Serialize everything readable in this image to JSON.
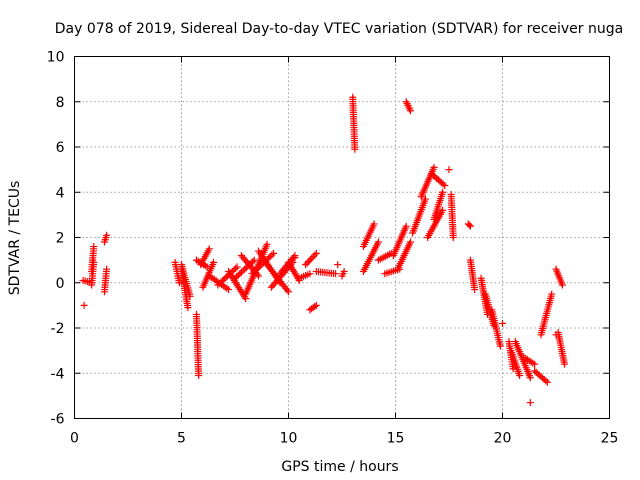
{
  "chart_data": {
    "type": "scatter",
    "title": "Day 078 of 2019, Sidereal Day-to-day VTEC variation (SDTVAR) for receiver nuga",
    "xlabel": "GPS time / hours",
    "ylabel": "SDTVAR / TECUs",
    "xlim": [
      0,
      25
    ],
    "ylim": [
      -6,
      10
    ],
    "x_ticks": [
      0,
      5,
      10,
      15,
      20,
      25
    ],
    "y_ticks": [
      -6,
      -4,
      -2,
      0,
      2,
      4,
      6,
      8,
      10
    ],
    "x_tick_labels": [
      "0",
      "5",
      "10",
      "15",
      "20",
      "25"
    ],
    "y_tick_labels": [
      "-6",
      "-4",
      "-2",
      "0",
      "2",
      "4",
      "6",
      "8",
      "10"
    ],
    "grid": true,
    "marker": "+",
    "color": "#ff0000",
    "segments": [
      {
        "x": [
          0.4,
          0.8
        ],
        "y": [
          0.1,
          0.0
        ]
      },
      {
        "x": [
          0.8,
          0.9
        ],
        "y": [
          0.5,
          1.6
        ]
      },
      {
        "x": [
          0.8,
          0.9
        ],
        "y": [
          -0.1,
          0.9
        ]
      },
      {
        "x": [
          1.4,
          1.5
        ],
        "y": [
          1.8,
          2.1
        ]
      },
      {
        "x": [
          1.4,
          1.5
        ],
        "y": [
          -0.4,
          0.6
        ]
      },
      {
        "x": [
          4.7,
          4.9
        ],
        "y": [
          0.9,
          0.0
        ]
      },
      {
        "x": [
          5.0,
          5.3
        ],
        "y": [
          0.6,
          -1.1
        ]
      },
      {
        "x": [
          5.0,
          5.4
        ],
        "y": [
          0.8,
          -0.6
        ]
      },
      {
        "x": [
          5.7,
          5.8
        ],
        "y": [
          -1.4,
          -4.1
        ]
      },
      {
        "x": [
          5.7,
          6.2
        ],
        "y": [
          1.0,
          0.7
        ]
      },
      {
        "x": [
          5.9,
          6.3
        ],
        "y": [
          0.8,
          1.5
        ]
      },
      {
        "x": [
          6.0,
          6.5
        ],
        "y": [
          -0.2,
          0.9
        ]
      },
      {
        "x": [
          6.3,
          7.2
        ],
        "y": [
          0.3,
          -0.3
        ]
      },
      {
        "x": [
          6.7,
          7.6
        ],
        "y": [
          -0.1,
          0.7
        ]
      },
      {
        "x": [
          7.2,
          8.0
        ],
        "y": [
          0.5,
          -0.7
        ]
      },
      {
        "x": [
          7.5,
          8.4
        ],
        "y": [
          0.2,
          1.0
        ]
      },
      {
        "x": [
          7.8,
          8.6
        ],
        "y": [
          1.2,
          0.3
        ]
      },
      {
        "x": [
          8.0,
          9.0
        ],
        "y": [
          -0.5,
          1.7
        ]
      },
      {
        "x": [
          8.3,
          9.3
        ],
        "y": [
          0.4,
          1.3
        ]
      },
      {
        "x": [
          8.6,
          9.6
        ],
        "y": [
          1.4,
          0.0
        ]
      },
      {
        "x": [
          9.0,
          10.0
        ],
        "y": [
          0.8,
          -0.4
        ]
      },
      {
        "x": [
          9.2,
          10.2
        ],
        "y": [
          -0.2,
          0.9
        ]
      },
      {
        "x": [
          9.6,
          10.3
        ],
        "y": [
          0.4,
          1.2
        ]
      },
      {
        "x": [
          10.0,
          10.5
        ],
        "y": [
          0.9,
          0.1
        ]
      },
      {
        "x": [
          10.5,
          11.0
        ],
        "y": [
          0.2,
          0.4
        ]
      },
      {
        "x": [
          10.8,
          11.3
        ],
        "y": [
          0.8,
          1.3
        ]
      },
      {
        "x": [
          11.0,
          11.3
        ],
        "y": [
          -1.2,
          -1.0
        ]
      },
      {
        "x": [
          11.3,
          12.2
        ],
        "y": [
          0.5,
          0.4
        ]
      },
      {
        "x": [
          12.5,
          12.6
        ],
        "y": [
          0.3,
          0.5
        ]
      },
      {
        "x": [
          13.0,
          13.1
        ],
        "y": [
          8.2,
          5.9
        ]
      },
      {
        "x": [
          13.5,
          14.0
        ],
        "y": [
          1.6,
          2.6
        ]
      },
      {
        "x": [
          13.5,
          14.2
        ],
        "y": [
          0.5,
          1.8
        ]
      },
      {
        "x": [
          14.2,
          14.8
        ],
        "y": [
          1.0,
          1.3
        ]
      },
      {
        "x": [
          14.5,
          15.2
        ],
        "y": [
          0.4,
          0.6
        ]
      },
      {
        "x": [
          14.9,
          15.5
        ],
        "y": [
          1.2,
          2.5
        ]
      },
      {
        "x": [
          15.1,
          15.7
        ],
        "y": [
          0.6,
          1.8
        ]
      },
      {
        "x": [
          15.5,
          15.7
        ],
        "y": [
          8.0,
          7.6
        ]
      },
      {
        "x": [
          15.8,
          16.4
        ],
        "y": [
          2.2,
          3.7
        ]
      },
      {
        "x": [
          16.2,
          16.8
        ],
        "y": [
          3.8,
          5.1
        ]
      },
      {
        "x": [
          16.5,
          17.2
        ],
        "y": [
          2.0,
          3.2
        ]
      },
      {
        "x": [
          16.7,
          17.3
        ],
        "y": [
          4.8,
          4.3
        ]
      },
      {
        "x": [
          16.8,
          17.2
        ],
        "y": [
          2.8,
          4.0
        ]
      },
      {
        "x": [
          17.6,
          17.7
        ],
        "y": [
          3.9,
          2.0
        ]
      },
      {
        "x": [
          18.4,
          18.5
        ],
        "y": [
          2.6,
          2.5
        ]
      },
      {
        "x": [
          18.5,
          18.7
        ],
        "y": [
          1.0,
          -0.3
        ]
      },
      {
        "x": [
          19.0,
          19.3
        ],
        "y": [
          0.2,
          -1.4
        ]
      },
      {
        "x": [
          19.2,
          19.6
        ],
        "y": [
          -0.5,
          -1.9
        ]
      },
      {
        "x": [
          19.5,
          19.9
        ],
        "y": [
          -1.2,
          -2.8
        ]
      },
      {
        "x": [
          20.3,
          20.5
        ],
        "y": [
          -2.6,
          -3.8
        ]
      },
      {
        "x": [
          20.4,
          20.8
        ],
        "y": [
          -3.0,
          -4.1
        ]
      },
      {
        "x": [
          20.6,
          21.3
        ],
        "y": [
          -2.6,
          -4.2
        ]
      },
      {
        "x": [
          21.0,
          21.5
        ],
        "y": [
          -3.3,
          -3.6
        ]
      },
      {
        "x": [
          21.5,
          22.1
        ],
        "y": [
          -3.9,
          -4.4
        ]
      },
      {
        "x": [
          21.8,
          22.3
        ],
        "y": [
          -2.3,
          -0.5
        ]
      },
      {
        "x": [
          22.5,
          22.8
        ],
        "y": [
          0.6,
          -0.1
        ]
      },
      {
        "x": [
          22.6,
          22.9
        ],
        "y": [
          -2.2,
          -3.6
        ]
      }
    ],
    "points": [
      {
        "x": 0.45,
        "y": -1.0
      },
      {
        "x": 20.0,
        "y": -1.8
      },
      {
        "x": 21.3,
        "y": -5.3
      },
      {
        "x": 17.5,
        "y": 5.0
      },
      {
        "x": 10.3,
        "y": 1.1
      },
      {
        "x": 12.3,
        "y": 0.8
      },
      {
        "x": 22.5,
        "y": -2.3
      }
    ]
  }
}
